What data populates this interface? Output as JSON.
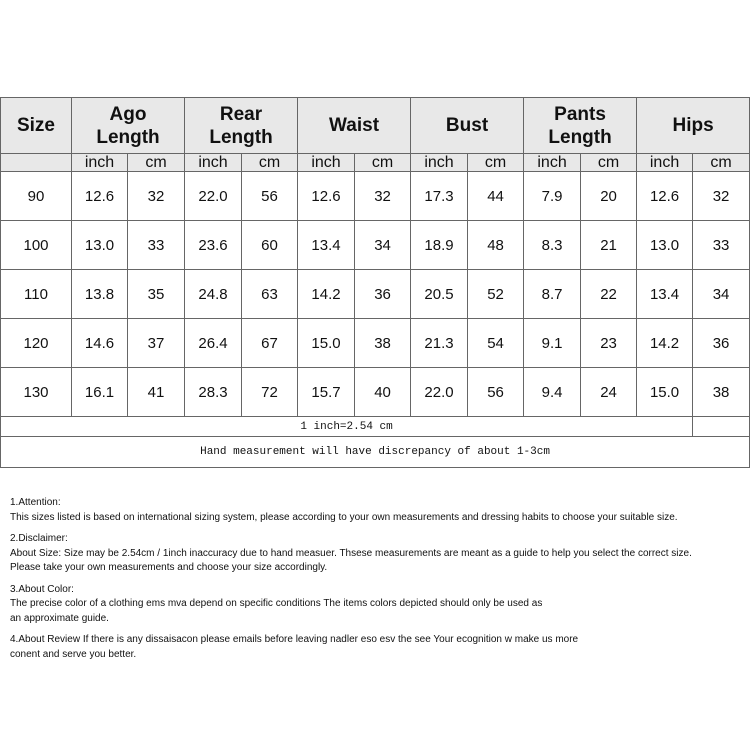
{
  "table": {
    "size_header": "Size",
    "groups": [
      "Ago Length",
      "Rear Length",
      "Waist",
      "Bust",
      "Pants Length",
      "Hips"
    ],
    "group_lines": [
      [
        "Ago",
        "Length"
      ],
      [
        "Rear",
        "Length"
      ],
      [
        "Waist"
      ],
      [
        "Bust"
      ],
      [
        "Pants",
        "Length"
      ],
      [
        "Hips"
      ]
    ],
    "unit_inch": "inch",
    "unit_cm": "cm",
    "rows": [
      [
        "90",
        "12.6",
        "32",
        "22.0",
        "56",
        "12.6",
        "32",
        "17.3",
        "44",
        "7.9",
        "20",
        "12.6",
        "32"
      ],
      [
        "100",
        "13.0",
        "33",
        "23.6",
        "60",
        "13.4",
        "34",
        "18.9",
        "48",
        "8.3",
        "21",
        "13.0",
        "33"
      ],
      [
        "110",
        "13.8",
        "35",
        "24.8",
        "63",
        "14.2",
        "36",
        "20.5",
        "52",
        "8.7",
        "22",
        "13.4",
        "34"
      ],
      [
        "120",
        "14.6",
        "37",
        "26.4",
        "67",
        "15.0",
        "38",
        "21.3",
        "54",
        "9.1",
        "23",
        "14.2",
        "36"
      ],
      [
        "130",
        "16.1",
        "41",
        "28.3",
        "72",
        "15.7",
        "40",
        "22.0",
        "56",
        "9.4",
        "24",
        "15.0",
        "38"
      ]
    ],
    "conversion": "1 inch=2.54 cm",
    "note": "Hand measurement will have discrepancy of about 1-3cm"
  },
  "notes": [
    {
      "title": "1.Attention:",
      "lines": [
        "This sizes listed is based on international sizing system, please according to your own measurements and dressing habits to choose your suitable size."
      ]
    },
    {
      "title": "2.Disclaimer:",
      "lines": [
        "About Size: Size may be 2.54cm / 1inch inaccuracy due to hand measuer. Thsese measurements are meant as a guide to help you select the correct size.",
        "Please take your own measurements and choose your size accordingly."
      ]
    },
    {
      "title": "3.About Color:",
      "lines": [
        "The precise color of a clothing ems mva depend on specific conditions The items colors depicted should only be used as",
        "an approximate guide."
      ]
    },
    {
      "title": "",
      "lines": [
        "4.About Review If there is any dissaisacon please emails before leaving nadler eso esv the see Your ecognition w make us more",
        "conent and serve you better."
      ]
    }
  ]
}
